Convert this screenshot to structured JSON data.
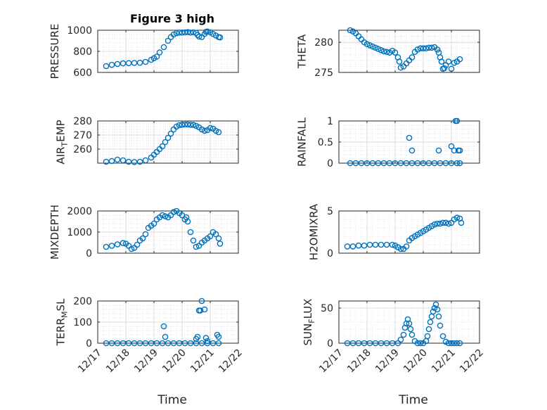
{
  "figure": {
    "title": "Figure 3 high",
    "xlabel": "Time",
    "colors": {
      "series": "#0072BD",
      "axis": "#262626",
      "grid": "#c8c8c8"
    }
  },
  "chart_data": [
    {
      "type": "scatter",
      "title": "Figure 3 high",
      "ylabel": "PRESSURE",
      "xlabel": "",
      "grid": true,
      "ylim": [
        600,
        1000
      ],
      "yticks": [
        600,
        800,
        1000
      ],
      "xlim": [
        "12/17",
        "12/22"
      ],
      "xticks": [
        "12/17",
        "12/18",
        "12/19",
        "12/20",
        "12/21",
        "12/22"
      ],
      "x": [
        17.3,
        17.5,
        17.7,
        17.9,
        18.1,
        18.3,
        18.5,
        18.7,
        18.9,
        19.0,
        19.1,
        19.2,
        19.35,
        19.5,
        19.6,
        19.7,
        19.8,
        19.9,
        20.0,
        20.1,
        20.2,
        20.3,
        20.4,
        20.5,
        20.55,
        20.6,
        20.7,
        20.8,
        20.85,
        20.9,
        21.0,
        21.1,
        21.2,
        21.3,
        21.35
      ],
      "y": [
        660,
        672,
        680,
        686,
        688,
        690,
        692,
        700,
        720,
        735,
        750,
        790,
        840,
        900,
        935,
        960,
        972,
        978,
        978,
        980,
        982,
        978,
        980,
        975,
        955,
        940,
        935,
        965,
        985,
        988,
        980,
        965,
        950,
        935,
        932
      ]
    },
    {
      "type": "scatter",
      "title": "",
      "ylabel": "THETA",
      "xlabel": "",
      "grid": true,
      "ylim": [
        275,
        282
      ],
      "yticks": [
        275,
        280
      ],
      "xlim": [
        "12/17",
        "12/22"
      ],
      "xticks": [
        "12/17",
        "12/18",
        "12/19",
        "12/20",
        "12/21",
        "12/22"
      ],
      "x": [
        17.4,
        17.5,
        17.6,
        17.7,
        17.8,
        17.9,
        18.0,
        18.1,
        18.2,
        18.3,
        18.4,
        18.5,
        18.6,
        18.7,
        18.8,
        18.9,
        19.0,
        19.1,
        19.15,
        19.2,
        19.3,
        19.4,
        19.5,
        19.6,
        19.7,
        19.8,
        19.9,
        20.0,
        20.1,
        20.2,
        20.3,
        20.4,
        20.5,
        20.55,
        20.6,
        20.65,
        20.7,
        20.75,
        20.8,
        20.9,
        21.0,
        21.1,
        21.2,
        21.3
      ],
      "y": [
        282,
        281.8,
        281.5,
        281,
        280.5,
        280,
        279.7,
        279.5,
        279.3,
        279.1,
        278.9,
        278.7,
        278.5,
        278.4,
        278.3,
        278.6,
        278.3,
        277.5,
        276.8,
        275.8,
        276,
        276.5,
        277,
        277.5,
        278.4,
        278.8,
        279,
        279,
        279,
        279.1,
        279.1,
        279.2,
        278.8,
        278.3,
        277.5,
        276.8,
        275.6,
        275.7,
        276.2,
        276.8,
        275.6,
        276.6,
        276.8,
        277.2
      ]
    },
    {
      "type": "scatter",
      "title": "",
      "ylabel": "AIR_TEMP",
      "xlabel": "",
      "grid": true,
      "ylim": [
        250,
        280
      ],
      "yticks": [
        260,
        270,
        280
      ],
      "xlim": [
        "12/17",
        "12/22"
      ],
      "xticks": [
        "12/17",
        "12/18",
        "12/19",
        "12/20",
        "12/21",
        "12/22"
      ],
      "x": [
        17.3,
        17.5,
        17.7,
        17.9,
        18.1,
        18.3,
        18.5,
        18.7,
        18.9,
        19.0,
        19.1,
        19.2,
        19.3,
        19.4,
        19.5,
        19.6,
        19.7,
        19.8,
        19.9,
        20.0,
        20.1,
        20.2,
        20.3,
        20.4,
        20.5,
        20.6,
        20.7,
        20.8,
        20.9,
        21.0,
        21.1,
        21.2,
        21.3
      ],
      "y": [
        251,
        251.5,
        252.5,
        252,
        251,
        250.8,
        251,
        252,
        254,
        256,
        258,
        260,
        262,
        265,
        268,
        271,
        274,
        276,
        277,
        277.3,
        277.5,
        277.5,
        277.3,
        277.2,
        276.5,
        275.5,
        274,
        273,
        273.5,
        275,
        274.5,
        273,
        272
      ]
    },
    {
      "type": "scatter",
      "title": "",
      "ylabel": "RAINFALL",
      "xlabel": "",
      "grid": true,
      "ylim": [
        0,
        1
      ],
      "yticks": [
        0,
        0.5,
        1
      ],
      "xlim": [
        "12/17",
        "12/22"
      ],
      "xticks": [
        "12/17",
        "12/18",
        "12/19",
        "12/20",
        "12/21",
        "12/22"
      ],
      "x": [
        17.4,
        17.6,
        17.8,
        18.0,
        18.2,
        18.4,
        18.6,
        18.8,
        19.0,
        19.2,
        19.4,
        19.6,
        19.8,
        20.0,
        20.2,
        20.4,
        20.6,
        20.8,
        21.0,
        21.2,
        21.3,
        19.5,
        19.6,
        20.55,
        21.0,
        21.1,
        21.15,
        21.2,
        21.25,
        21.3
      ],
      "y": [
        0,
        0,
        0,
        0,
        0,
        0,
        0,
        0,
        0,
        0,
        0,
        0,
        0,
        0,
        0,
        0,
        0,
        0,
        0,
        0,
        0,
        0.6,
        0.3,
        0.3,
        0.4,
        0.3,
        1.0,
        1.0,
        0.3,
        0.3
      ]
    },
    {
      "type": "scatter",
      "title": "",
      "ylabel": "MIXDEPTH",
      "xlabel": "",
      "grid": true,
      "ylim": [
        0,
        2000
      ],
      "yticks": [
        0,
        1000,
        2000
      ],
      "xlim": [
        "12/17",
        "12/22"
      ],
      "xticks": [
        "12/17",
        "12/18",
        "12/19",
        "12/20",
        "12/21",
        "12/22"
      ],
      "x": [
        17.3,
        17.5,
        17.7,
        17.9,
        18.0,
        18.1,
        18.2,
        18.3,
        18.4,
        18.5,
        18.6,
        18.7,
        18.8,
        18.9,
        19.0,
        19.1,
        19.2,
        19.3,
        19.4,
        19.5,
        19.6,
        19.7,
        19.8,
        19.9,
        20.0,
        20.1,
        20.15,
        20.2,
        20.3,
        20.4,
        20.5,
        20.6,
        20.7,
        20.8,
        20.9,
        21.0,
        21.1,
        21.2,
        21.3,
        21.35
      ],
      "y": [
        300,
        350,
        420,
        480,
        450,
        350,
        200,
        250,
        400,
        600,
        700,
        900,
        1200,
        1300,
        1400,
        1600,
        1700,
        1800,
        1750,
        1700,
        1800,
        1950,
        2000,
        1900,
        1800,
        1600,
        1700,
        1500,
        1000,
        600,
        300,
        350,
        500,
        600,
        700,
        800,
        1000,
        900,
        700,
        450
      ]
    },
    {
      "type": "scatter",
      "title": "",
      "ylabel": "H2OMIXRA",
      "xlabel": "",
      "grid": true,
      "ylim": [
        0,
        5
      ],
      "yticks": [
        0,
        5
      ],
      "xlim": [
        "12/17",
        "12/22"
      ],
      "xticks": [
        "12/17",
        "12/18",
        "12/19",
        "12/20",
        "12/21",
        "12/22"
      ],
      "x": [
        17.3,
        17.5,
        17.7,
        17.9,
        18.1,
        18.3,
        18.5,
        18.7,
        18.9,
        19.0,
        19.1,
        19.2,
        19.3,
        19.4,
        19.5,
        19.6,
        19.7,
        19.8,
        19.9,
        20.0,
        20.1,
        20.2,
        20.3,
        20.4,
        20.5,
        20.6,
        20.7,
        20.8,
        20.9,
        21.0,
        21.1,
        21.2,
        21.3,
        21.35
      ],
      "y": [
        0.8,
        0.8,
        0.9,
        0.9,
        1.0,
        1.0,
        1.0,
        1.0,
        1.0,
        0.9,
        0.7,
        0.5,
        0.5,
        0.8,
        1.5,
        1.8,
        2.0,
        2.2,
        2.4,
        2.6,
        2.8,
        3.0,
        3.2,
        3.4,
        3.5,
        3.5,
        3.6,
        3.6,
        3.5,
        3.6,
        4.0,
        4.2,
        4.1,
        3.6
      ]
    },
    {
      "type": "scatter",
      "title": "",
      "ylabel": "TERR_MSL",
      "xlabel": "Time",
      "grid": true,
      "ylim": [
        0,
        200
      ],
      "yticks": [
        0,
        100,
        200
      ],
      "xlim": [
        "12/17",
        "12/22"
      ],
      "xticks": [
        "12/17",
        "12/18",
        "12/19",
        "12/20",
        "12/21",
        "12/22"
      ],
      "x": [
        17.3,
        17.5,
        17.7,
        17.9,
        18.1,
        18.3,
        18.5,
        18.7,
        18.9,
        19.1,
        19.3,
        19.5,
        19.7,
        19.9,
        20.1,
        20.3,
        20.5,
        20.7,
        20.9,
        21.1,
        21.3,
        19.35,
        19.4,
        20.5,
        20.55,
        20.6,
        20.65,
        20.7,
        20.8,
        20.85,
        20.9,
        21.25,
        21.3
      ],
      "y": [
        0,
        0,
        0,
        0,
        0,
        0,
        0,
        0,
        0,
        0,
        0,
        0,
        0,
        0,
        0,
        0,
        0,
        0,
        0,
        0,
        0,
        80,
        30,
        20,
        30,
        155,
        155,
        200,
        160,
        25,
        10,
        40,
        30
      ]
    },
    {
      "type": "scatter",
      "title": "",
      "ylabel": "SUN_FLUX",
      "xlabel": "Time",
      "grid": true,
      "ylim": [
        0,
        60
      ],
      "yticks": [
        0,
        50
      ],
      "xlim": [
        "12/17",
        "12/22"
      ],
      "xticks": [
        "12/17",
        "12/18",
        "12/19",
        "12/20",
        "12/21",
        "12/22"
      ],
      "x": [
        17.3,
        17.5,
        17.7,
        17.9,
        18.1,
        18.3,
        18.5,
        18.7,
        18.9,
        19.1,
        19.2,
        19.3,
        19.35,
        19.4,
        19.45,
        19.5,
        19.55,
        19.6,
        19.7,
        19.8,
        19.9,
        20.0,
        20.1,
        20.15,
        20.2,
        20.25,
        20.3,
        20.35,
        20.4,
        20.45,
        20.5,
        20.55,
        20.6,
        20.7,
        20.8,
        20.9,
        21.0,
        21.1,
        21.2,
        21.3
      ],
      "y": [
        0,
        0,
        0,
        0,
        0,
        0,
        0,
        0,
        0,
        0,
        5,
        12,
        22,
        28,
        34,
        28,
        20,
        12,
        3,
        0,
        0,
        0,
        3,
        10,
        20,
        30,
        38,
        45,
        50,
        55,
        48,
        38,
        25,
        10,
        2,
        0,
        0,
        0,
        0,
        0
      ]
    }
  ]
}
